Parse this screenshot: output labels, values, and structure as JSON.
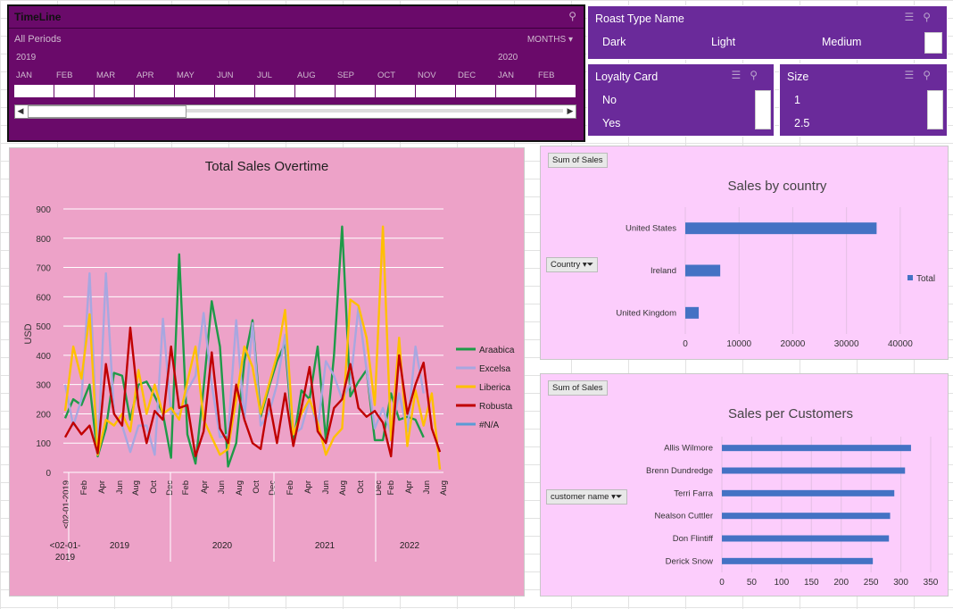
{
  "timeline": {
    "title": "TimeLine",
    "all_periods": "All Periods",
    "level": "MONTHS",
    "year_start": "2019",
    "year_next": "2020",
    "months": [
      "JAN",
      "FEB",
      "MAR",
      "APR",
      "MAY",
      "JUN",
      "JUL",
      "AUG",
      "SEP",
      "OCT",
      "NOV",
      "DEC",
      "JAN",
      "FEB"
    ],
    "filter_icon": "clear-filter-icon"
  },
  "roast_slicer": {
    "title": "Roast Type Name",
    "options": [
      "Dark",
      "Light",
      "Medium"
    ]
  },
  "loyalty_slicer": {
    "title": "Loyalty Card",
    "options": [
      "No",
      "Yes"
    ]
  },
  "size_slicer": {
    "title": "Size",
    "options": [
      "1",
      "2.5"
    ]
  },
  "colors": {
    "arabica": "#1e9a48",
    "excelsa": "#a7a7e0",
    "liberica": "#ffc000",
    "robusta": "#c00000",
    "na": "#5b9bd5",
    "bar": "#4472c4"
  },
  "chart_data": [
    {
      "type": "line",
      "title": "Total Sales Overtime",
      "ylabel": "USD",
      "ylim": [
        0,
        900
      ],
      "yticks": [
        0,
        100,
        200,
        300,
        400,
        500,
        600,
        700,
        800,
        900
      ],
      "x_tick_labels": [
        "<02-01-2019",
        "Feb",
        "Apr",
        "Jun",
        "Aug",
        "Oct",
        "Dec",
        "Feb",
        "Apr",
        "Jun",
        "Aug",
        "Oct",
        "Dec",
        "Feb",
        "Apr",
        "Jun",
        "Aug",
        "Oct",
        "Dec",
        "Feb",
        "Apr",
        "Jun",
        "Aug"
      ],
      "groups": [
        "<02-01-2019",
        "2019",
        "2020",
        "2021",
        "2022"
      ],
      "series": [
        {
          "name": "Araabica",
          "color": "#1e9a48",
          "values": [
            185,
            250,
            230,
            300,
            55,
            150,
            340,
            330,
            180,
            300,
            310,
            260,
            200,
            50,
            745,
            130,
            30,
            290,
            585,
            430,
            20,
            100,
            380,
            520,
            190,
            290,
            380,
            440,
            100,
            280,
            250,
            430,
            110,
            400,
            840,
            260,
            310,
            350,
            110,
            110,
            270,
            180,
            190,
            180,
            120
          ]
        },
        {
          "name": "Excelsa",
          "color": "#a7a7e0",
          "values": [
            300,
            160,
            250,
            680,
            60,
            680,
            200,
            160,
            70,
            160,
            160,
            60,
            525,
            200,
            200,
            280,
            330,
            545,
            300,
            120,
            130,
            520,
            180,
            510,
            160,
            200,
            300,
            470,
            130,
            150,
            250,
            150,
            380,
            330,
            250,
            300,
            565,
            350,
            150,
            220,
            130,
            270,
            140,
            430,
            270
          ]
        },
        {
          "name": "Liberica",
          "color": "#ffc000",
          "values": [
            210,
            430,
            320,
            540,
            60,
            180,
            160,
            200,
            140,
            350,
            200,
            300,
            200,
            220,
            180,
            310,
            430,
            180,
            120,
            60,
            80,
            250,
            430,
            360,
            200,
            300,
            400,
            555,
            130,
            200,
            250,
            170,
            60,
            120,
            150,
            590,
            570,
            460,
            230,
            840,
            110,
            460,
            90,
            280,
            160,
            270,
            10
          ]
        },
        {
          "name": "Robusta",
          "color": "#c00000",
          "values": [
            120,
            170,
            130,
            160,
            65,
            370,
            200,
            160,
            495,
            230,
            100,
            210,
            180,
            430,
            220,
            230,
            55,
            140,
            410,
            150,
            100,
            300,
            180,
            100,
            80,
            250,
            100,
            270,
            90,
            220,
            360,
            140,
            100,
            220,
            250,
            370,
            220,
            190,
            210,
            170,
            55,
            400,
            200,
            300,
            375,
            150,
            70
          ]
        },
        {
          "name": "#N/A",
          "color": "#5b9bd5",
          "values": []
        }
      ]
    },
    {
      "type": "bar",
      "title": "Sales by country",
      "field_button": "Sum of Sales",
      "axis_button": "Country",
      "legend": "Total",
      "categories": [
        "United States",
        "Ireland",
        "United Kingdom"
      ],
      "values": [
        35600,
        6500,
        2500
      ],
      "xlim": [
        0,
        45000
      ],
      "xticks": [
        0,
        10000,
        20000,
        30000,
        40000
      ],
      "tick_labels": [
        "0",
        "10000",
        "20000",
        "30000",
        "40000"
      ]
    },
    {
      "type": "bar",
      "title": "Sales per Customers",
      "field_button": "Sum of Sales",
      "axis_button": "customer name",
      "categories": [
        "Allis Wilmore",
        "Brenn Dundredge",
        "Terri Farra",
        "Nealson Cuttler",
        "Don Flintiff",
        "Derick Snow"
      ],
      "values": [
        317,
        307,
        289,
        282,
        280,
        253
      ],
      "xlim": [
        0,
        350
      ],
      "xticks": [
        0,
        50,
        100,
        150,
        200,
        250,
        300,
        350
      ],
      "tick_labels": [
        "0",
        "50",
        "100",
        "150",
        "200",
        "250",
        "300",
        "350"
      ]
    }
  ]
}
